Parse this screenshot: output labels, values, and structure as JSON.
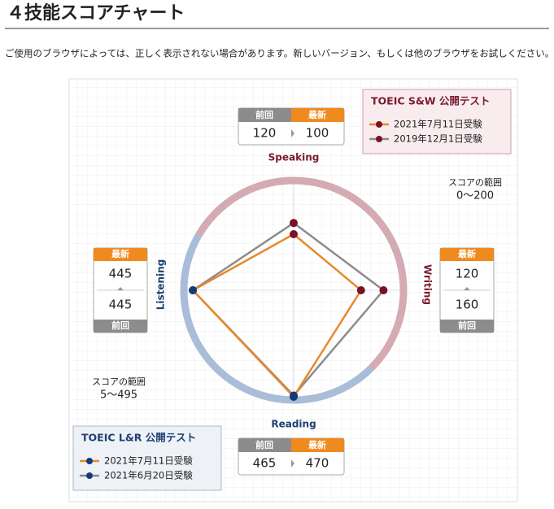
{
  "page_title": "４技能スコアチャート",
  "notice": "ご使用のブラウザによっては、正しく表示されない場合があります。新しいバージョン、もしくは他のブラウザをお試しください。",
  "chart_data": {
    "type": "radar",
    "latest_label": "最新",
    "previous_label": "前回",
    "groups": [
      {
        "title": "TOEIC S&W 公開テスト",
        "range_caption": "スコアの範囲",
        "range_label": "0～200",
        "ylim": [
          0,
          200
        ],
        "axes": [
          "Speaking",
          "Writing"
        ],
        "axis_color": "#7a1a2e",
        "ring_color": "#d4aab3",
        "marker_color": "#7a1226",
        "series": [
          {
            "name": "2021年7月11日受験",
            "color": "#e8892a",
            "values": [
              100,
              120
            ]
          },
          {
            "name": "2019年12月1日受験",
            "color": "#8c8c8c",
            "values": [
              120,
              160
            ]
          }
        ]
      },
      {
        "title": "TOEIC L&R 公開テスト",
        "range_caption": "スコアの範囲",
        "range_label": "5～495",
        "ylim": [
          5,
          495
        ],
        "axes": [
          "Reading",
          "Listening"
        ],
        "axis_color": "#1d3f73",
        "ring_color": "#a9bdd8",
        "marker_color": "#163a78",
        "series": [
          {
            "name": "2021年7月11日受験",
            "color": "#e8892a",
            "values": [
              470,
              445
            ]
          },
          {
            "name": "2021年6月20日受験",
            "color": "#8c8c8c",
            "values": [
              465,
              445
            ]
          }
        ]
      }
    ]
  }
}
